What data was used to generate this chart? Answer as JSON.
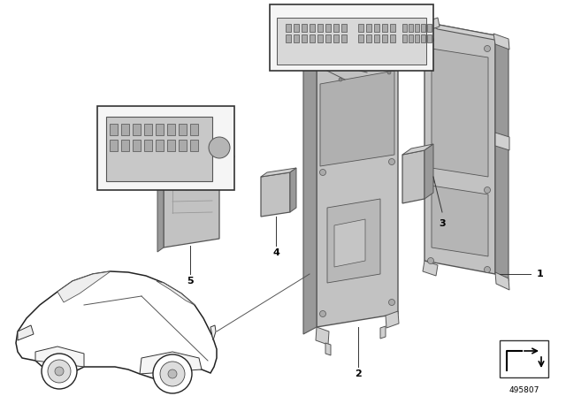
{
  "bg_color": "#ffffff",
  "fig_num": "495807",
  "lc": "#555555",
  "lc_dark": "#333333",
  "gray_light": "#d0d0d0",
  "gray_mid": "#b8b8b8",
  "gray_dark": "#999999",
  "gray_panel": "#c2c2c2",
  "inset_bg": "#f5f5f5",
  "lw": 0.8,
  "lw_thin": 0.5
}
